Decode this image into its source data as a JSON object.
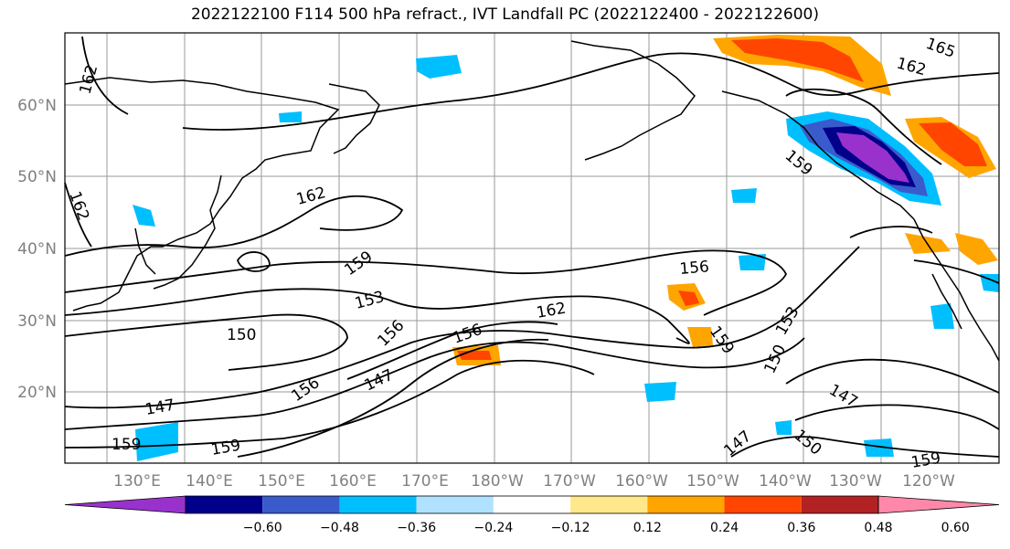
{
  "title": "2022122100 F114 500 hPa refract., IVT Landfall PC (2022122400 - 2022122600)",
  "lat_labels": [
    "60°N",
    "50°N",
    "40°N",
    "30°N",
    "20°N"
  ],
  "lon_labels": [
    "130°E",
    "140°E",
    "150°E",
    "160°E",
    "170°E",
    "180°W",
    "170°W",
    "160°W",
    "150°W",
    "140°W",
    "130°W",
    "120°W"
  ],
  "colorbar": {
    "colors": [
      "#9932cc",
      "#00008b",
      "#3a5bcc",
      "#00bfff",
      "#b0e2ff",
      "#ffffff",
      "#ffe88a",
      "#ffa500",
      "#ff4500",
      "#b22222",
      "#ff88aa"
    ],
    "tick_labels": [
      "−0.60",
      "−0.48",
      "−0.36",
      "−0.24",
      "−0.12",
      "0.12",
      "0.24",
      "0.36",
      "0.48",
      "0.60"
    ]
  },
  "contour_labels": [
    "162",
    "162",
    "162",
    "165",
    "162",
    "159",
    "159",
    "153",
    "150",
    "147",
    "159",
    "159",
    "156",
    "156",
    "147",
    "156",
    "162",
    "159",
    "153",
    "150",
    "147",
    "150",
    "147",
    "156",
    "159"
  ]
}
